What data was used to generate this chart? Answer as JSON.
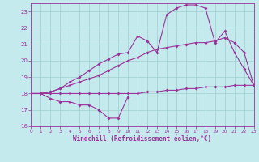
{
  "background_color": "#c5eaed",
  "grid_color": "#9ecfcf",
  "line_color": "#993399",
  "xlabel": "Windchill (Refroidissement éolien,°C)",
  "xlim": [
    0,
    23
  ],
  "ylim": [
    16,
    23.5
  ],
  "yticks": [
    16,
    17,
    18,
    19,
    20,
    21,
    22,
    23
  ],
  "xticks": [
    0,
    1,
    2,
    3,
    4,
    5,
    6,
    7,
    8,
    9,
    10,
    11,
    12,
    13,
    14,
    15,
    16,
    17,
    18,
    19,
    20,
    21,
    22,
    23
  ],
  "s1_x": [
    0,
    1,
    2,
    3,
    4,
    5,
    6,
    7,
    8,
    9,
    10
  ],
  "s1_y": [
    18.0,
    18.0,
    17.7,
    17.5,
    17.5,
    17.3,
    17.3,
    17.0,
    16.5,
    16.5,
    17.8
  ],
  "s2_x": [
    0,
    1,
    2,
    3,
    4,
    5,
    6,
    7,
    8,
    9,
    10,
    11,
    12,
    13,
    14,
    15,
    16,
    17,
    18,
    19,
    20,
    21,
    22,
    23
  ],
  "s2_y": [
    18.0,
    18.0,
    18.0,
    18.0,
    18.0,
    18.0,
    18.0,
    18.0,
    18.0,
    18.0,
    18.0,
    18.0,
    18.1,
    18.1,
    18.2,
    18.2,
    18.3,
    18.3,
    18.4,
    18.4,
    18.4,
    18.5,
    18.5,
    18.5
  ],
  "s3_x": [
    0,
    1,
    2,
    3,
    4,
    5,
    6,
    7,
    8,
    9,
    10,
    11,
    12,
    13,
    14,
    15,
    16,
    17,
    18,
    19,
    20,
    21,
    22,
    23
  ],
  "s3_y": [
    18.0,
    18.0,
    18.1,
    18.3,
    18.5,
    18.7,
    18.9,
    19.1,
    19.4,
    19.7,
    20.0,
    20.2,
    20.5,
    20.7,
    20.8,
    20.9,
    21.0,
    21.1,
    21.1,
    21.2,
    21.4,
    21.1,
    20.5,
    18.5
  ],
  "s4_x": [
    0,
    1,
    2,
    3,
    4,
    5,
    6,
    7,
    8,
    9,
    10,
    11,
    12,
    13,
    14,
    15,
    16,
    17,
    18,
    19,
    20,
    21,
    22,
    23
  ],
  "s4_y": [
    18.0,
    18.0,
    18.1,
    18.3,
    18.7,
    19.0,
    19.4,
    19.8,
    20.1,
    20.4,
    20.5,
    21.5,
    21.2,
    20.5,
    22.8,
    23.2,
    23.4,
    23.4,
    23.2,
    21.1,
    21.8,
    20.5,
    19.5,
    18.5
  ]
}
